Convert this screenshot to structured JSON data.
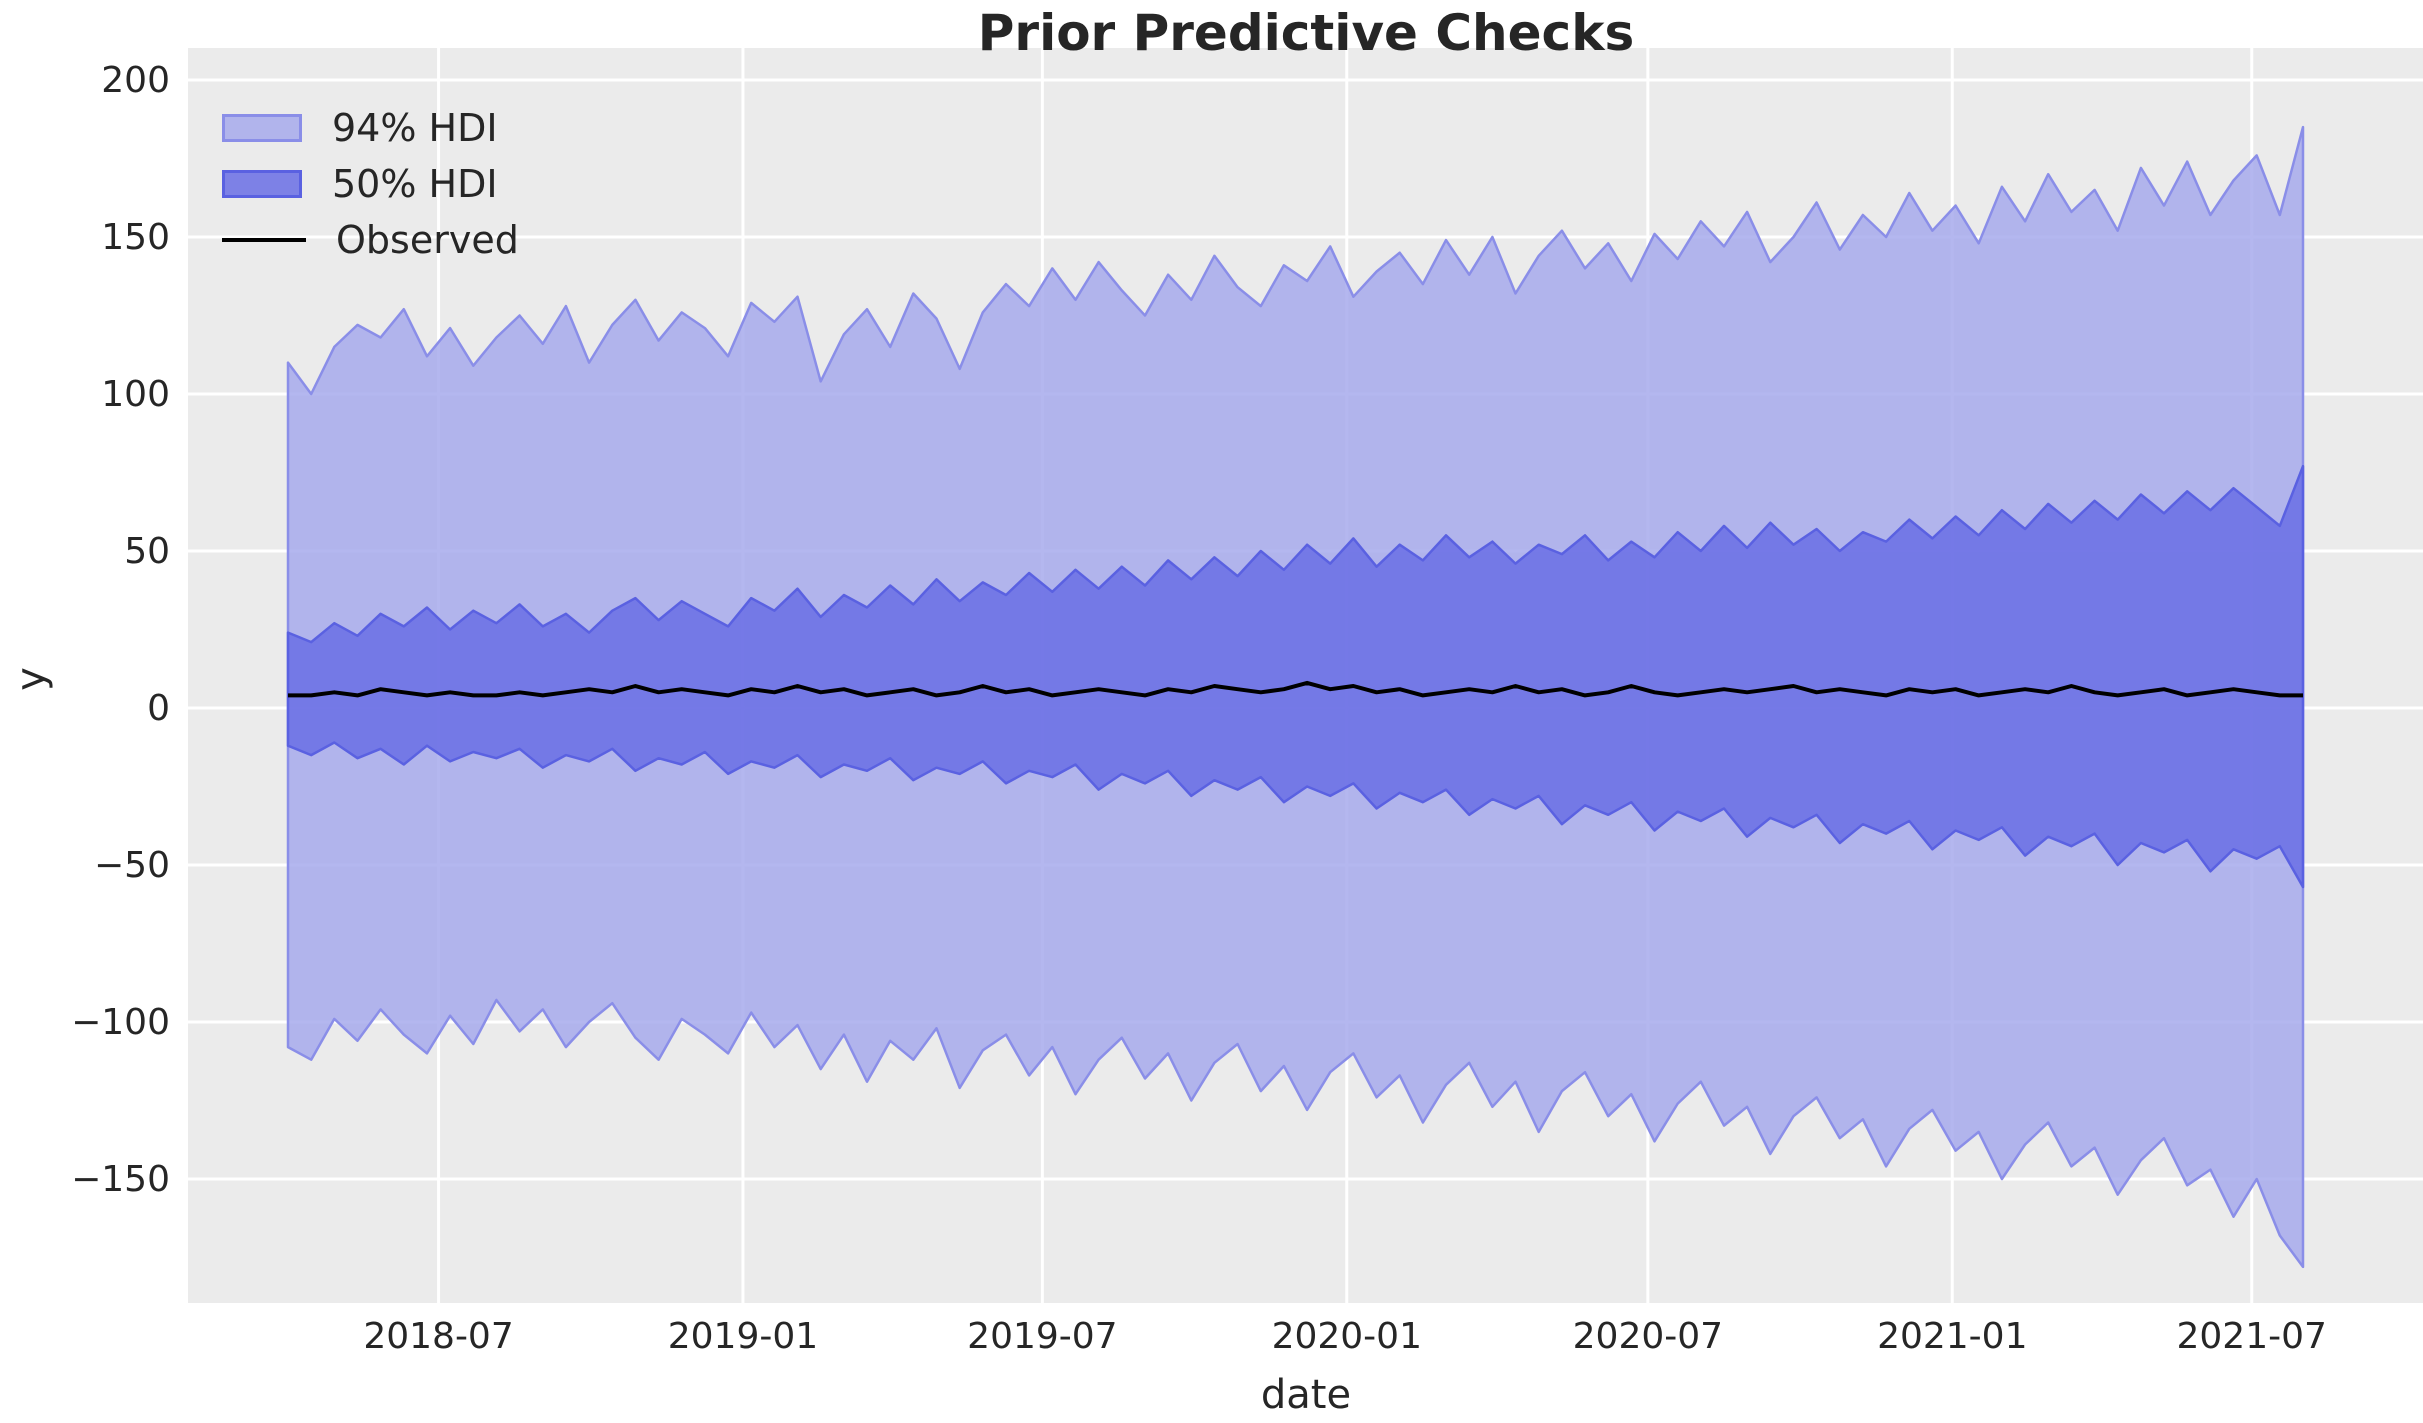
{
  "chart_data": {
    "type": "area",
    "title": "Prior Predictive Checks",
    "xlabel": "date",
    "ylabel": "y",
    "x_tick_labels": [
      "2018-07",
      "2019-01",
      "2019-07",
      "2020-01",
      "2020-07",
      "2021-01",
      "2021-07"
    ],
    "x_tick_day_offsets": [
      91,
      275,
      456,
      640,
      822,
      1006,
      1187
    ],
    "x_start_date": "2018-04-01",
    "x_end_date": "2021-08-01",
    "x_step_days": 14,
    "x_total_days": 1218,
    "y_ticks": [
      200,
      150,
      100,
      50,
      0,
      -50,
      -100,
      -150
    ],
    "y_tick_labels": [
      "200",
      "150",
      "100",
      "50",
      "0",
      "−50",
      "−100",
      "−150"
    ],
    "ylim": [
      -190,
      210
    ],
    "grid": true,
    "legend_position": "upper left",
    "legend": [
      {
        "label": "94% HDI",
        "type": "patch"
      },
      {
        "label": "50% HDI",
        "type": "patch"
      },
      {
        "label": "Observed",
        "type": "line"
      }
    ],
    "series": [
      {
        "name": "hdi94_upper",
        "values": [
          110,
          100,
          115,
          122,
          118,
          127,
          112,
          121,
          109,
          118,
          125,
          116,
          128,
          110,
          122,
          130,
          117,
          126,
          121,
          112,
          129,
          123,
          131,
          104,
          119,
          127,
          115,
          132,
          124,
          108,
          126,
          135,
          128,
          140,
          130,
          142,
          133,
          125,
          138,
          130,
          144,
          134,
          128,
          141,
          136,
          147,
          131,
          139,
          145,
          135,
          149,
          138,
          150,
          132,
          144,
          152,
          140,
          148,
          136,
          151,
          143,
          155,
          147,
          158,
          142,
          150,
          161,
          146,
          157,
          150,
          164,
          152,
          160,
          148,
          166,
          155,
          170,
          158,
          165,
          152,
          172,
          160,
          174,
          157,
          168,
          176,
          157,
          185
        ]
      },
      {
        "name": "hdi94_lower",
        "values": [
          -108,
          -112,
          -99,
          -106,
          -96,
          -104,
          -110,
          -98,
          -107,
          -93,
          -103,
          -96,
          -108,
          -100,
          -94,
          -105,
          -112,
          -99,
          -104,
          -110,
          -97,
          -108,
          -101,
          -115,
          -104,
          -119,
          -106,
          -112,
          -102,
          -121,
          -109,
          -104,
          -117,
          -108,
          -123,
          -112,
          -105,
          -118,
          -110,
          -125,
          -113,
          -107,
          -122,
          -114,
          -128,
          -116,
          -110,
          -124,
          -117,
          -132,
          -120,
          -113,
          -127,
          -119,
          -135,
          -122,
          -116,
          -130,
          -123,
          -138,
          -126,
          -119,
          -133,
          -127,
          -142,
          -130,
          -124,
          -137,
          -131,
          -146,
          -134,
          -128,
          -141,
          -135,
          -150,
          -139,
          -132,
          -146,
          -140,
          -155,
          -144,
          -137,
          -152,
          -147,
          -162,
          -150,
          -168,
          -178
        ]
      },
      {
        "name": "hdi50_upper",
        "values": [
          24,
          21,
          27,
          23,
          30,
          26,
          32,
          25,
          31,
          27,
          33,
          26,
          30,
          24,
          31,
          35,
          28,
          34,
          30,
          26,
          35,
          31,
          38,
          29,
          36,
          32,
          39,
          33,
          41,
          34,
          40,
          36,
          43,
          37,
          44,
          38,
          45,
          39,
          47,
          41,
          48,
          42,
          50,
          44,
          52,
          46,
          54,
          45,
          52,
          47,
          55,
          48,
          53,
          46,
          52,
          49,
          55,
          47,
          53,
          48,
          56,
          50,
          58,
          51,
          59,
          52,
          57,
          50,
          56,
          53,
          60,
          54,
          61,
          55,
          63,
          57,
          65,
          59,
          66,
          60,
          68,
          62,
          69,
          63,
          70,
          64,
          58,
          77
        ]
      },
      {
        "name": "hdi50_lower",
        "values": [
          -12,
          -15,
          -11,
          -16,
          -13,
          -18,
          -12,
          -17,
          -14,
          -16,
          -13,
          -19,
          -15,
          -17,
          -13,
          -20,
          -16,
          -18,
          -14,
          -21,
          -17,
          -19,
          -15,
          -22,
          -18,
          -20,
          -16,
          -23,
          -19,
          -21,
          -17,
          -24,
          -20,
          -22,
          -18,
          -26,
          -21,
          -24,
          -20,
          -28,
          -23,
          -26,
          -22,
          -30,
          -25,
          -28,
          -24,
          -32,
          -27,
          -30,
          -26,
          -34,
          -29,
          -32,
          -28,
          -37,
          -31,
          -34,
          -30,
          -39,
          -33,
          -36,
          -32,
          -41,
          -35,
          -38,
          -34,
          -43,
          -37,
          -40,
          -36,
          -45,
          -39,
          -42,
          -38,
          -47,
          -41,
          -44,
          -40,
          -50,
          -43,
          -46,
          -42,
          -52,
          -45,
          -48,
          -44,
          -57
        ]
      },
      {
        "name": "observed",
        "values": [
          4,
          4,
          5,
          4,
          6,
          5,
          4,
          5,
          4,
          4,
          5,
          4,
          5,
          6,
          5,
          7,
          5,
          6,
          5,
          4,
          6,
          5,
          7,
          5,
          6,
          4,
          5,
          6,
          4,
          5,
          7,
          5,
          6,
          4,
          5,
          6,
          5,
          4,
          6,
          5,
          7,
          6,
          5,
          6,
          8,
          6,
          7,
          5,
          6,
          4,
          5,
          6,
          5,
          7,
          5,
          6,
          4,
          5,
          7,
          5,
          4,
          5,
          6,
          5,
          6,
          7,
          5,
          6,
          5,
          4,
          6,
          5,
          6,
          4,
          5,
          6,
          5,
          7,
          5,
          4,
          5,
          6,
          4,
          5,
          6,
          5,
          4,
          4
        ]
      }
    ]
  },
  "colors": {
    "figure_bg": "#ffffff",
    "axes_bg": "#ebebeb",
    "grid": "#ffffff",
    "hdi94_fill": "#b1b4ec",
    "hdi94_solid": "#a7aaec",
    "hdi94_edge": "#8a8ee8",
    "hdi50_fill": "#7d81e6",
    "hdi50_solid": "#6a6ee5",
    "hdi50_edge": "#5a61e1",
    "observed": "#000000",
    "text": "#262626"
  }
}
